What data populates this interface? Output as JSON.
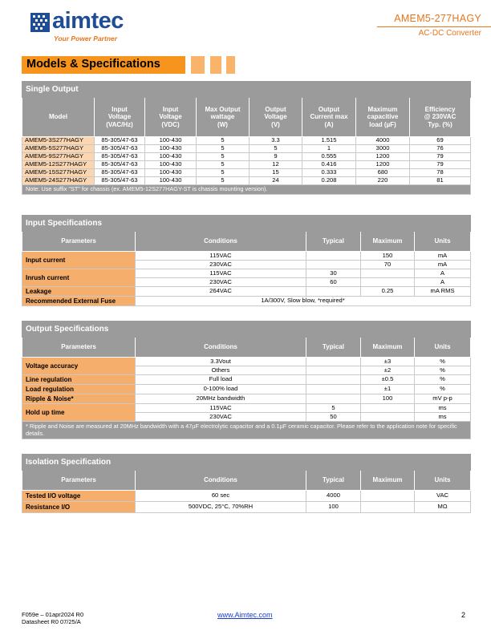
{
  "header": {
    "logo_text": "aimtec",
    "logo_tagline": "Your Power Partner",
    "model": "AMEM5-277HAGY",
    "subtitle": "AC-DC Converter"
  },
  "section_title": "Models & Specifications",
  "single_output": {
    "title": "Single Output",
    "headers": [
      [
        "Model"
      ],
      [
        "Input",
        "Voltage",
        "(VAC/Hz)"
      ],
      [
        "Input",
        "Voltage",
        "(VDC)"
      ],
      [
        "Max Output",
        "wattage",
        "(W)"
      ],
      [
        "Output",
        "Voltage",
        "(V)"
      ],
      [
        "Output",
        "Current max",
        "(A)"
      ],
      [
        "Maximum",
        "capacitive",
        "load (µF)"
      ],
      [
        "Efficiency",
        "@ 230VAC",
        "Typ. (%)"
      ]
    ],
    "rows": [
      [
        "AMEM5-3S277HAGY",
        "85-305/47-63",
        "100-430",
        "5",
        "3.3",
        "1.515",
        "4000",
        "69"
      ],
      [
        "AMEM5-5S277HAGY",
        "85-305/47-63",
        "100-430",
        "5",
        "5",
        "1",
        "3000",
        "76"
      ],
      [
        "AMEM5-9S277HAGY",
        "85-305/47-63",
        "100-430",
        "5",
        "9",
        "0.555",
        "1200",
        "79"
      ],
      [
        "AMEM5-12S277HAGY",
        "85-305/47-63",
        "100-430",
        "5",
        "12",
        "0.416",
        "1200",
        "79"
      ],
      [
        "AMEM5-15S277HAGY",
        "85-305/47-63",
        "100-430",
        "5",
        "15",
        "0.333",
        "680",
        "78"
      ],
      [
        "AMEM5-24S277HAGY",
        "85-305/47-63",
        "100-430",
        "5",
        "24",
        "0.208",
        "220",
        "81"
      ]
    ],
    "note": "Note: Use suffix \"ST\" for chassis (ex. AMEM5-12S277HAGY-ST is chassis mounting version)."
  },
  "input_spec": {
    "title": "Input Specifications",
    "headers": [
      "Parameters",
      "Conditions",
      "Typical",
      "Maximum",
      "Units"
    ],
    "input_current": "Input current",
    "ic_rows": [
      {
        "cond": "115VAC",
        "typ": "",
        "max": "150",
        "unit": "mA"
      },
      {
        "cond": "230VAC",
        "typ": "",
        "max": "70",
        "unit": "mA"
      }
    ],
    "inrush_current": "Inrush current",
    "inrush_rows": [
      {
        "cond": "115VAC",
        "typ": "30",
        "max": "",
        "unit": "A"
      },
      {
        "cond": "230VAC",
        "typ": "60",
        "max": "",
        "unit": "A"
      }
    ],
    "leakage": {
      "param": "Leakage",
      "cond": "264VAC",
      "typ": "",
      "max": "0.25",
      "unit": "mA RMS"
    },
    "fuse": {
      "param": "Recommended External Fuse",
      "value": "1A/300V, Slow blow, *required*"
    }
  },
  "output_spec": {
    "title": "Output Specifications",
    "headers": [
      "Parameters",
      "Conditions",
      "Typical",
      "Maximum",
      "Units"
    ],
    "voltage_accuracy": "Voltage accuracy",
    "va_rows": [
      {
        "cond": "3.3Vout",
        "typ": "",
        "max": "±3",
        "unit": "%"
      },
      {
        "cond": "Others",
        "typ": "",
        "max": "±2",
        "unit": "%"
      }
    ],
    "line_reg": {
      "param": "Line regulation",
      "cond": "Full load",
      "typ": "",
      "max": "±0.5",
      "unit": "%"
    },
    "load_reg": {
      "param": "Load regulation",
      "cond": "0-100% load",
      "typ": "",
      "max": "±1",
      "unit": "%"
    },
    "ripple": {
      "param": "Ripple & Noise*",
      "cond": "20MHz bandwidth",
      "typ": "",
      "max": "100",
      "unit": "mV p-p"
    },
    "hold_up": "Hold up time",
    "hu_rows": [
      {
        "cond": "115VAC",
        "typ": "5",
        "max": "",
        "unit": "ms"
      },
      {
        "cond": "230VAC",
        "typ": "50",
        "max": "",
        "unit": "ms"
      }
    ],
    "note": "* Ripple and Noise are measured at 20MHz bandwidth with a 47µF electrolytic capacitor and a 0.1µF ceramic capacitor. Please refer to the application note for specific details."
  },
  "isolation_spec": {
    "title": "Isolation Specification",
    "headers": [
      "Parameters",
      "Conditions",
      "Typical",
      "Maximum",
      "Units"
    ],
    "rows": [
      {
        "param": "Tested I/O voltage",
        "cond": "60 sec",
        "typ": "4000",
        "max": "",
        "unit": "VAC"
      },
      {
        "param": "Resistance I/O",
        "cond": "500VDC, 25°C, 70%RH",
        "typ": "100",
        "max": "",
        "unit": "MΩ"
      }
    ]
  },
  "footer": {
    "doc_code": "F059e – 01apr2024 R0",
    "datasheet": "Datasheet R0 07/25/A",
    "website": "www.Aimtec.com",
    "page": "2"
  },
  "colors": {
    "brand_blue": "#1f4e96",
    "brand_orange": "#e8751a",
    "banner_orange": "#f7941d",
    "param_orange": "#f5ae6b",
    "header_gray": "#9b9b9b"
  }
}
